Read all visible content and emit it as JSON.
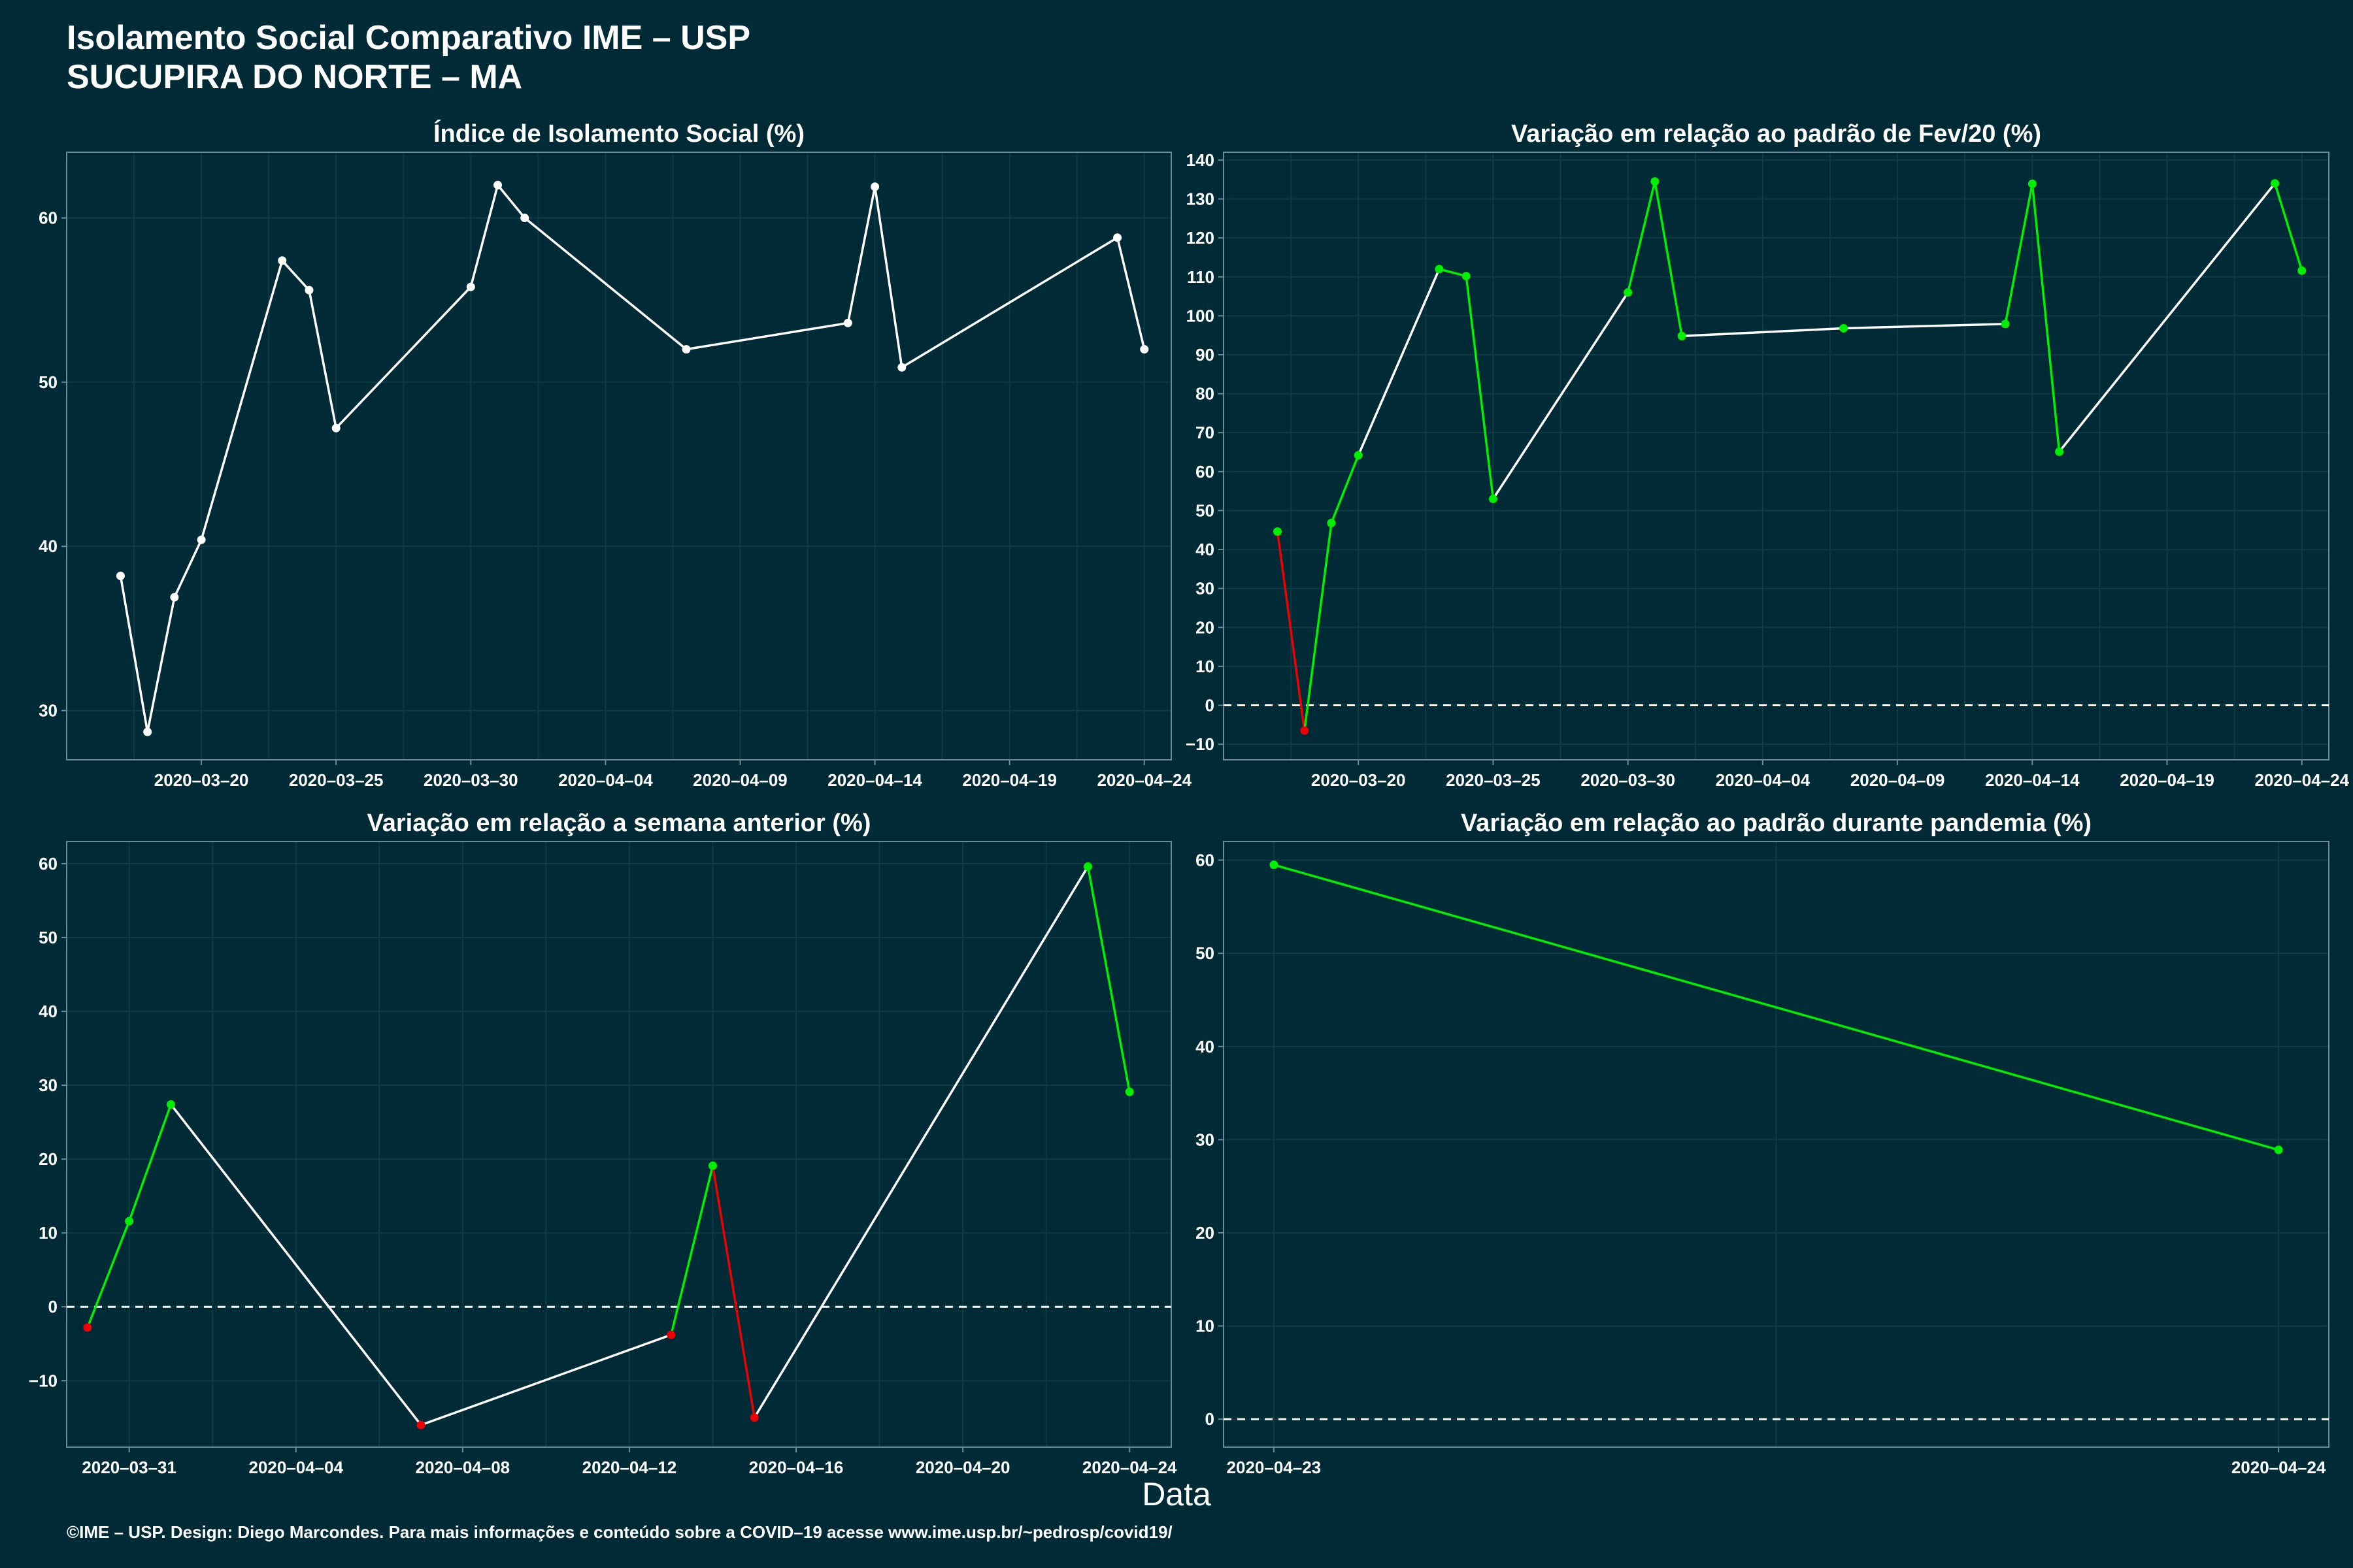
{
  "title": "Isolamento Social Comparativo IME – USP",
  "subtitle": "SUCUPIRA DO NORTE – MA",
  "x_axis_label": "Data",
  "caption": "©IME – USP. Design: Diego Marcondes. Para mais informações e conteúdo sobre a COVID–19 acesse www.ime.usp.br/~pedrosp/covid19/",
  "colors": {
    "background": "#002b36",
    "line_neutral": "#ffffff",
    "increase": "#00ee00",
    "decrease": "#ee0000",
    "frame": "#6c8a93"
  },
  "chart_data": [
    {
      "type": "line",
      "title": "Índice de Isolamento Social (%)",
      "x_type": "date",
      "xlim": [
        "2020-03-15",
        "2020-04-25"
      ],
      "ylim": [
        27,
        64
      ],
      "xticks": [
        "2020-03-20",
        "2020-03-25",
        "2020-03-30",
        "2020-04-04",
        "2020-04-09",
        "2020-04-14",
        "2020-04-19",
        "2020-04-24"
      ],
      "yticks": [
        30,
        40,
        50,
        60
      ],
      "zero_line": false,
      "grid": true,
      "x": [
        "2020-03-17",
        "2020-03-18",
        "2020-03-19",
        "2020-03-20",
        "2020-03-23",
        "2020-03-24",
        "2020-03-25",
        "2020-03-30",
        "2020-03-31",
        "2020-04-01",
        "2020-04-07",
        "2020-04-13",
        "2020-04-14",
        "2020-04-15",
        "2020-04-23",
        "2020-04-24"
      ],
      "y": [
        38.2,
        28.7,
        36.9,
        40.4,
        57.4,
        55.6,
        47.2,
        55.8,
        62.0,
        60.0,
        52.0,
        53.6,
        61.9,
        50.9,
        58.8,
        52.0
      ],
      "segment_colors": [
        "neutral",
        "neutral",
        "neutral",
        "neutral",
        "neutral",
        "neutral",
        "neutral",
        "neutral",
        "neutral",
        "neutral",
        "neutral",
        "neutral",
        "neutral",
        "neutral",
        "neutral"
      ],
      "point_colors": [
        "neutral",
        "neutral",
        "neutral",
        "neutral",
        "neutral",
        "neutral",
        "neutral",
        "neutral",
        "neutral",
        "neutral",
        "neutral",
        "neutral",
        "neutral",
        "neutral",
        "neutral",
        "neutral"
      ]
    },
    {
      "type": "line",
      "title": "Variação em relação ao padrão de Fev/20 (%)",
      "x_type": "date",
      "xlim": [
        "2020-03-15",
        "2020-04-25"
      ],
      "ylim": [
        -14,
        142
      ],
      "xticks": [
        "2020-03-20",
        "2020-03-25",
        "2020-03-30",
        "2020-04-04",
        "2020-04-09",
        "2020-04-14",
        "2020-04-19",
        "2020-04-24"
      ],
      "yticks": [
        -10,
        0,
        10,
        20,
        30,
        40,
        50,
        60,
        70,
        80,
        90,
        100,
        110,
        120,
        130,
        140
      ],
      "zero_line": true,
      "grid": true,
      "x": [
        "2020-03-17",
        "2020-03-18",
        "2020-03-19",
        "2020-03-20",
        "2020-03-23",
        "2020-03-24",
        "2020-03-25",
        "2020-03-30",
        "2020-03-31",
        "2020-04-01",
        "2020-04-07",
        "2020-04-13",
        "2020-04-14",
        "2020-04-15",
        "2020-04-23",
        "2020-04-24"
      ],
      "y": [
        44.6,
        -6.5,
        46.8,
        64.2,
        112.0,
        110.2,
        53.0,
        106.0,
        134.5,
        94.8,
        96.8,
        97.9,
        133.9,
        65.1,
        134.0,
        111.6
      ],
      "segment_colors": [
        "decrease",
        "increase",
        "increase",
        "neutral",
        "increase",
        "increase",
        "neutral",
        "increase",
        "increase",
        "neutral",
        "neutral",
        "increase",
        "increase",
        "neutral",
        "increase"
      ],
      "point_colors": [
        "increase",
        "decrease",
        "increase",
        "increase",
        "increase",
        "increase",
        "increase",
        "increase",
        "increase",
        "increase",
        "increase",
        "increase",
        "increase",
        "increase",
        "increase",
        "increase"
      ]
    },
    {
      "type": "line",
      "title": "Variação em relação a semana anterior (%)",
      "x_type": "date",
      "xlim": [
        "2020-03-29.5",
        "2020-04-25"
      ],
      "ylim": [
        -19,
        63
      ],
      "xticks": [
        "2020-03-31",
        "2020-04-04",
        "2020-04-08",
        "2020-04-12",
        "2020-04-16",
        "2020-04-20",
        "2020-04-24"
      ],
      "yticks": [
        -10,
        0,
        10,
        20,
        30,
        40,
        50,
        60
      ],
      "zero_line": true,
      "grid": true,
      "x": [
        "2020-03-30",
        "2020-03-31",
        "2020-04-01",
        "2020-04-07",
        "2020-04-13",
        "2020-04-14",
        "2020-04-15",
        "2020-04-23",
        "2020-04-24"
      ],
      "y": [
        -2.8,
        11.6,
        27.4,
        -16.0,
        -3.8,
        19.1,
        -15.0,
        59.6,
        29.1
      ],
      "segment_colors": [
        "increase",
        "increase",
        "neutral",
        "neutral",
        "increase",
        "decrease",
        "neutral",
        "increase"
      ],
      "point_colors": [
        "decrease",
        "increase",
        "increase",
        "decrease",
        "decrease",
        "increase",
        "decrease",
        "increase",
        "increase"
      ]
    },
    {
      "type": "line",
      "title": "Variação em relação ao padrão durante pandemia (%)",
      "x_type": "date",
      "xlim": [
        "2020-04-23",
        "2020-04-24"
      ],
      "xpad": 0.05,
      "ylim": [
        -3,
        62
      ],
      "xticks": [
        "2020-04-23",
        "2020-04-24"
      ],
      "yticks": [
        0,
        10,
        20,
        30,
        40,
        50,
        60
      ],
      "zero_line": true,
      "grid": true,
      "x": [
        "2020-04-23",
        "2020-04-24"
      ],
      "y": [
        59.5,
        28.9
      ],
      "segment_colors": [
        "increase"
      ],
      "point_colors": [
        "increase",
        "increase"
      ]
    }
  ]
}
